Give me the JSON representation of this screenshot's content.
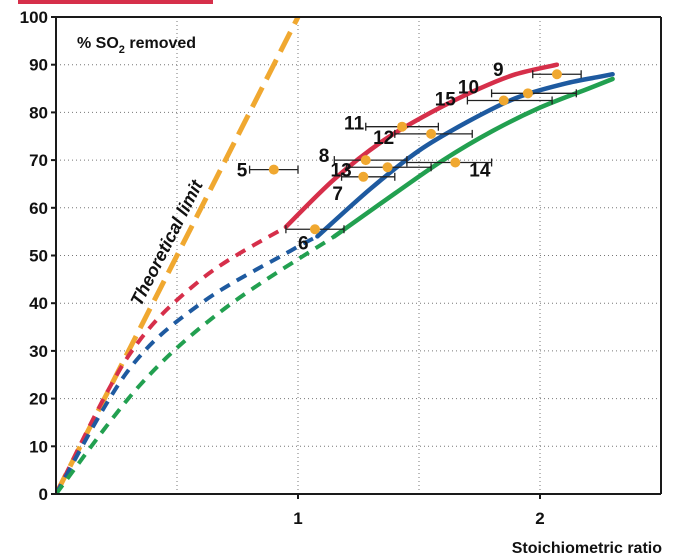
{
  "chart_data": {
    "type": "scatter",
    "title": "",
    "xlabel": "Stoichiometric ratio",
    "ylabel_text": "% SO",
    "ylabel_sub": "2",
    "ylabel_suffix": " removed",
    "xlim": [
      0,
      2.5
    ],
    "ylim": [
      0,
      100
    ],
    "x_ticks": [
      {
        "value": 1,
        "label": "1"
      },
      {
        "value": 2,
        "label": "2"
      }
    ],
    "y_ticks": [
      0,
      10,
      20,
      30,
      40,
      50,
      60,
      70,
      80,
      90,
      100
    ],
    "grid": "dotted",
    "series": [
      {
        "name": "Theoretical limit",
        "kind": "dashed-line",
        "color": "#f0a830",
        "points": [
          [
            0,
            0
          ],
          [
            1,
            100
          ]
        ]
      },
      {
        "kind": "curve",
        "color": "#d62f4a",
        "dashed": [
          [
            0,
            0
          ],
          [
            0.3,
            29
          ],
          [
            0.6,
            45
          ],
          [
            0.95,
            56
          ]
        ],
        "solid": [
          [
            0.95,
            56
          ],
          [
            1.15,
            66
          ],
          [
            1.35,
            74
          ],
          [
            1.55,
            80
          ],
          [
            1.75,
            85
          ],
          [
            1.9,
            88
          ],
          [
            2.07,
            90
          ]
        ]
      },
      {
        "kind": "curve",
        "color": "#1e5aa0",
        "dashed": [
          [
            0,
            0
          ],
          [
            0.3,
            26
          ],
          [
            0.6,
            40
          ],
          [
            0.97,
            51
          ],
          [
            1.08,
            54
          ]
        ],
        "solid": [
          [
            1.08,
            54
          ],
          [
            1.3,
            64
          ],
          [
            1.5,
            72
          ],
          [
            1.7,
            78
          ],
          [
            1.9,
            83
          ],
          [
            2.1,
            86
          ],
          [
            2.25,
            87.5
          ],
          [
            2.3,
            88
          ]
        ]
      },
      {
        "kind": "curve",
        "color": "#22a050",
        "dashed": [
          [
            0,
            0
          ],
          [
            0.35,
            23
          ],
          [
            0.7,
            39
          ],
          [
            1.15,
            54
          ]
        ],
        "solid": [
          [
            1.15,
            54
          ],
          [
            1.4,
            63
          ],
          [
            1.6,
            70
          ],
          [
            1.8,
            76
          ],
          [
            2.0,
            81
          ],
          [
            2.2,
            85
          ],
          [
            2.3,
            87
          ]
        ]
      }
    ],
    "data_points": [
      {
        "label": "5",
        "x": 0.9,
        "y": 68,
        "xerr": [
          0.8,
          1.0
        ]
      },
      {
        "label": "6",
        "x": 1.07,
        "y": 55.5,
        "xerr": [
          0.95,
          1.19
        ]
      },
      {
        "label": "7",
        "x": 1.27,
        "y": 66.5,
        "xerr": [
          1.18,
          1.4
        ]
      },
      {
        "label": "8",
        "x": 1.28,
        "y": 70,
        "xerr": [
          1.15,
          1.45
        ]
      },
      {
        "label": "13",
        "x": 1.37,
        "y": 68.5,
        "xerr": [
          1.2,
          1.55
        ]
      },
      {
        "label": "11",
        "x": 1.43,
        "y": 77,
        "xerr": [
          1.28,
          1.58
        ]
      },
      {
        "label": "12",
        "x": 1.55,
        "y": 75.5,
        "xerr": [
          1.4,
          1.72
        ]
      },
      {
        "label": "14",
        "x": 1.65,
        "y": 69.5,
        "xerr": [
          1.45,
          1.8
        ]
      },
      {
        "label": "15",
        "x": 1.85,
        "y": 82.5,
        "xerr": [
          1.7,
          2.05
        ]
      },
      {
        "label": "10",
        "x": 1.95,
        "y": 84,
        "xerr": [
          1.8,
          2.15
        ]
      },
      {
        "label": "9",
        "x": 2.07,
        "y": 88,
        "xerr": [
          1.97,
          2.17
        ]
      }
    ]
  },
  "colors": {
    "point_fill": "#f0a830",
    "axes": "#1a1a1a",
    "grid": "#777777",
    "header_bar": "#d62f4a"
  }
}
